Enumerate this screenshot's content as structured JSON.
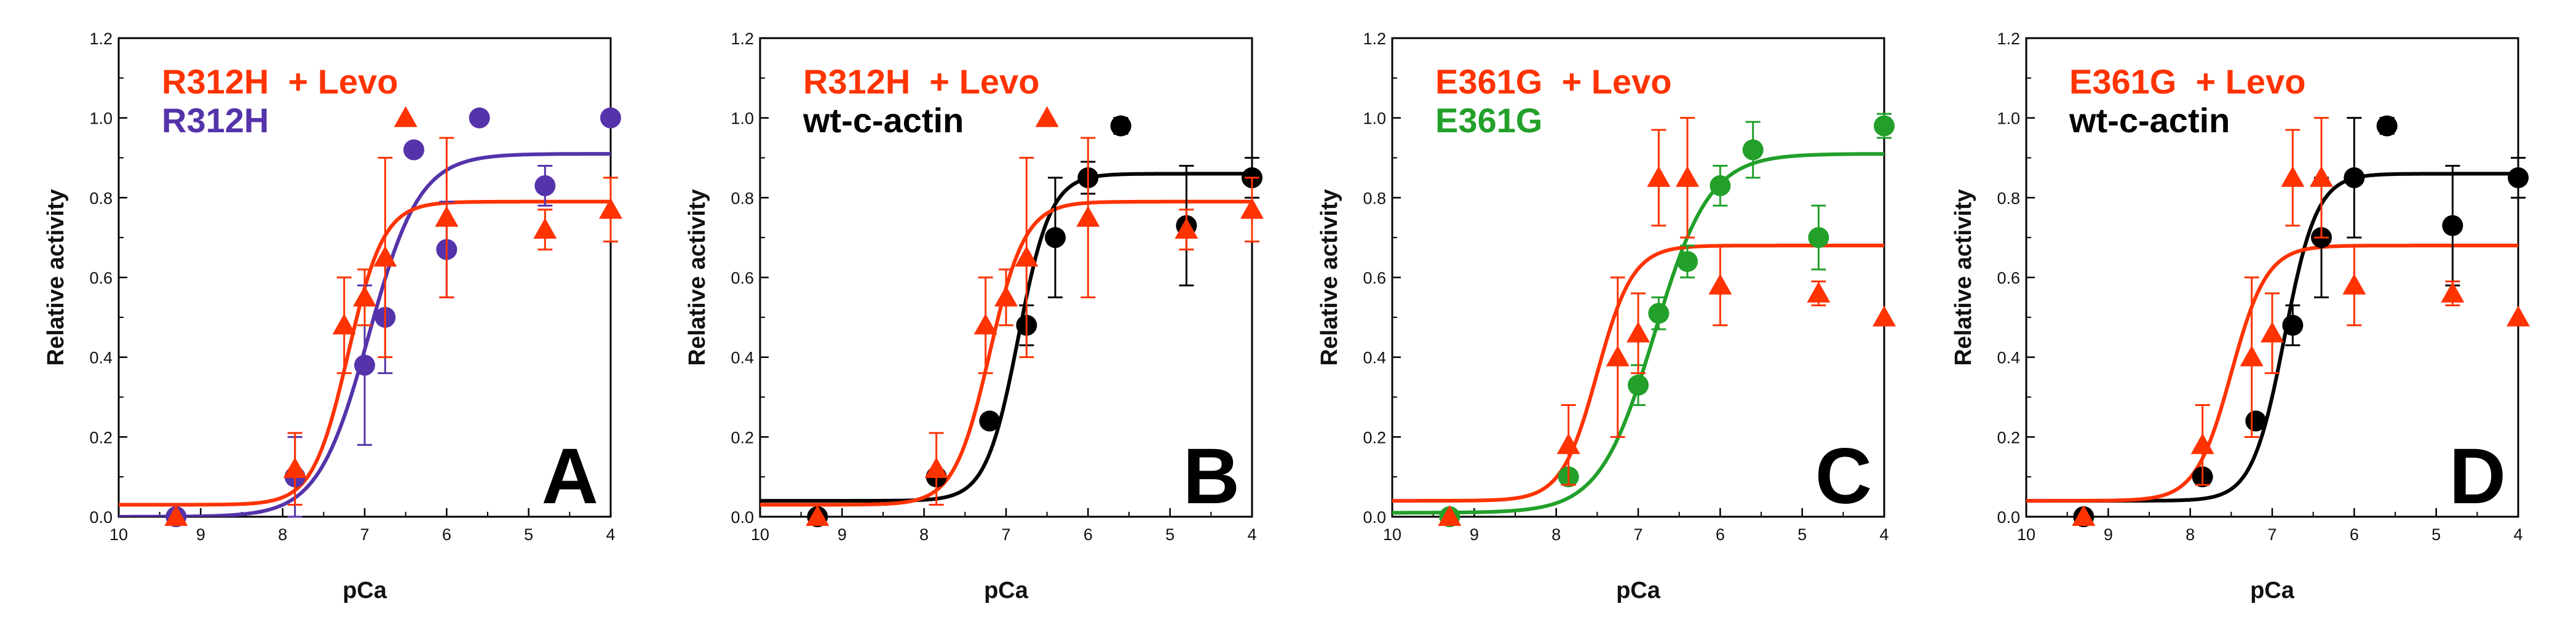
{
  "chart_data": [
    {
      "type": "scatter",
      "panel_label": "A",
      "xlabel": "pCa",
      "ylabel": "Relative activity",
      "xlim": [
        10,
        4
      ],
      "ylim": [
        0,
        1.2
      ],
      "xticks": [
        "10",
        "9",
        "8",
        "7",
        "6",
        "5",
        "4"
      ],
      "yticks": [
        "0.0",
        "0.2",
        "0.4",
        "0.6",
        "0.8",
        "1.0",
        "1.2"
      ],
      "legend": [
        {
          "label": "R312H  + Levo",
          "color": "#ff3300"
        },
        {
          "label": "R312H",
          "color": "#5533aa"
        }
      ],
      "series": [
        {
          "name": "R312H",
          "marker": "circle",
          "color": "#5533aa",
          "points": [
            {
              "x": 9.3,
              "y": 0.0
            },
            {
              "x": 7.85,
              "y": 0.1,
              "err": 0.1
            },
            {
              "x": 7.0,
              "y": 0.38,
              "err": 0.2
            },
            {
              "x": 6.75,
              "y": 0.5,
              "err": 0.14
            },
            {
              "x": 6.4,
              "y": 0.92
            },
            {
              "x": 6.0,
              "y": 0.67,
              "err": 0.12
            },
            {
              "x": 5.6,
              "y": 1.0
            },
            {
              "x": 4.8,
              "y": 0.83,
              "err": 0.05
            },
            {
              "x": 4.0,
              "y": 1.0
            }
          ],
          "fit": {
            "bottom": 0.0,
            "top": 0.91,
            "pca50": 6.95,
            "slope": 1.4
          }
        },
        {
          "name": "R312H + Levo",
          "marker": "triangle",
          "color": "#ff3300",
          "points": [
            {
              "x": 9.3,
              "y": 0.0
            },
            {
              "x": 7.85,
              "y": 0.12,
              "err": 0.09
            },
            {
              "x": 7.25,
              "y": 0.48,
              "err": 0.12
            },
            {
              "x": 7.0,
              "y": 0.55,
              "err": 0.07
            },
            {
              "x": 6.75,
              "y": 0.65,
              "err": 0.25
            },
            {
              "x": 6.5,
              "y": 1.0
            },
            {
              "x": 6.0,
              "y": 0.75,
              "err": 0.2
            },
            {
              "x": 4.8,
              "y": 0.72,
              "err": 0.05
            },
            {
              "x": 4.0,
              "y": 0.77,
              "err": 0.08
            }
          ],
          "fit": {
            "bottom": 0.03,
            "top": 0.79,
            "pca50": 7.2,
            "slope": 2.0
          }
        }
      ]
    },
    {
      "type": "scatter",
      "panel_label": "B",
      "xlabel": "pCa",
      "ylabel": "Relative activity",
      "xlim": [
        10,
        4
      ],
      "ylim": [
        0,
        1.2
      ],
      "xticks": [
        "10",
        "9",
        "8",
        "7",
        "6",
        "5",
        "4"
      ],
      "yticks": [
        "0.0",
        "0.2",
        "0.4",
        "0.6",
        "0.8",
        "1.0",
        "1.2"
      ],
      "legend": [
        {
          "label": "R312H  + Levo",
          "color": "#ff3300"
        },
        {
          "label": "wt-c-actin",
          "color": "#000000"
        }
      ],
      "series": [
        {
          "name": "wt-c-actin",
          "marker": "circle",
          "color": "#000000",
          "points": [
            {
              "x": 9.3,
              "y": 0.0
            },
            {
              "x": 7.85,
              "y": 0.1
            },
            {
              "x": 7.2,
              "y": 0.24
            },
            {
              "x": 6.75,
              "y": 0.48,
              "err": 0.05
            },
            {
              "x": 6.4,
              "y": 0.7,
              "err": 0.15
            },
            {
              "x": 6.0,
              "y": 0.85,
              "err": 0.04
            },
            {
              "x": 5.6,
              "y": 0.98,
              "err": 0.02
            },
            {
              "x": 4.8,
              "y": 0.73,
              "err": 0.15
            },
            {
              "x": 4.0,
              "y": 0.85,
              "err": 0.05
            }
          ],
          "fit": {
            "bottom": 0.04,
            "top": 0.86,
            "pca50": 6.85,
            "slope": 2.2
          }
        },
        {
          "name": "R312H + Levo",
          "marker": "triangle",
          "color": "#ff3300",
          "points": [
            {
              "x": 9.3,
              "y": 0.0
            },
            {
              "x": 7.85,
              "y": 0.12,
              "err": 0.09
            },
            {
              "x": 7.25,
              "y": 0.48,
              "err": 0.12
            },
            {
              "x": 7.0,
              "y": 0.55,
              "err": 0.07
            },
            {
              "x": 6.75,
              "y": 0.65,
              "err": 0.25
            },
            {
              "x": 6.5,
              "y": 1.0
            },
            {
              "x": 6.0,
              "y": 0.75,
              "err": 0.2
            },
            {
              "x": 4.8,
              "y": 0.72,
              "err": 0.05
            },
            {
              "x": 4.0,
              "y": 0.77,
              "err": 0.08
            }
          ],
          "fit": {
            "bottom": 0.03,
            "top": 0.79,
            "pca50": 7.2,
            "slope": 2.0
          }
        }
      ]
    },
    {
      "type": "scatter",
      "panel_label": "C",
      "xlabel": "pCa",
      "ylabel": "Relative activity",
      "xlim": [
        10,
        4
      ],
      "ylim": [
        0,
        1.2
      ],
      "xticks": [
        "10",
        "9",
        "8",
        "7",
        "6",
        "5",
        "4"
      ],
      "yticks": [
        "0.0",
        "0.2",
        "0.4",
        "0.6",
        "0.8",
        "1.0",
        "1.2"
      ],
      "legend": [
        {
          "label": "E361G  + Levo",
          "color": "#ff3300"
        },
        {
          "label": "E361G",
          "color": "#22a02a"
        }
      ],
      "series": [
        {
          "name": "E361G",
          "marker": "circle",
          "color": "#22a02a",
          "points": [
            {
              "x": 9.3,
              "y": 0.0
            },
            {
              "x": 7.85,
              "y": 0.1
            },
            {
              "x": 7.0,
              "y": 0.33,
              "err": 0.05
            },
            {
              "x": 6.75,
              "y": 0.51,
              "err": 0.04
            },
            {
              "x": 6.4,
              "y": 0.64,
              "err": 0.04
            },
            {
              "x": 6.0,
              "y": 0.83,
              "err": 0.05
            },
            {
              "x": 5.6,
              "y": 0.92,
              "err": 0.07
            },
            {
              "x": 4.8,
              "y": 0.7,
              "err": 0.08
            },
            {
              "x": 4.0,
              "y": 0.98,
              "err": 0.03
            }
          ],
          "fit": {
            "bottom": 0.01,
            "top": 0.91,
            "pca50": 6.8,
            "slope": 1.3
          }
        },
        {
          "name": "E361G + Levo",
          "marker": "triangle",
          "color": "#ff3300",
          "points": [
            {
              "x": 9.3,
              "y": 0.0
            },
            {
              "x": 7.85,
              "y": 0.18,
              "err": 0.1
            },
            {
              "x": 7.25,
              "y": 0.4,
              "err": 0.2
            },
            {
              "x": 7.0,
              "y": 0.46,
              "err": 0.1
            },
            {
              "x": 6.75,
              "y": 0.85,
              "err": 0.12
            },
            {
              "x": 6.4,
              "y": 0.85,
              "err": 0.15
            },
            {
              "x": 6.0,
              "y": 0.58,
              "err": 0.1
            },
            {
              "x": 4.8,
              "y": 0.56,
              "err": 0.03
            },
            {
              "x": 4.0,
              "y": 0.5
            }
          ],
          "fit": {
            "bottom": 0.04,
            "top": 0.68,
            "pca50": 7.5,
            "slope": 2.0
          }
        }
      ]
    },
    {
      "type": "scatter",
      "panel_label": "D",
      "xlabel": "pCa",
      "ylabel": "Relative activity",
      "xlim": [
        10,
        4
      ],
      "ylim": [
        0,
        1.2
      ],
      "xticks": [
        "10",
        "9",
        "8",
        "7",
        "6",
        "5",
        "4"
      ],
      "yticks": [
        "0.0",
        "0.2",
        "0.4",
        "0.6",
        "0.8",
        "1.0",
        "1.2"
      ],
      "legend": [
        {
          "label": "E361G  + Levo",
          "color": "#ff3300"
        },
        {
          "label": "wt-c-actin",
          "color": "#000000"
        }
      ],
      "series": [
        {
          "name": "wt-c-actin",
          "marker": "circle",
          "color": "#000000",
          "points": [
            {
              "x": 9.3,
              "y": 0.0
            },
            {
              "x": 7.85,
              "y": 0.1
            },
            {
              "x": 7.2,
              "y": 0.24
            },
            {
              "x": 6.75,
              "y": 0.48,
              "err": 0.05
            },
            {
              "x": 6.4,
              "y": 0.7,
              "err": 0.15
            },
            {
              "x": 6.0,
              "y": 0.85,
              "err": 0.15
            },
            {
              "x": 5.6,
              "y": 0.98,
              "err": 0.02
            },
            {
              "x": 4.8,
              "y": 0.73,
              "err": 0.15
            },
            {
              "x": 4.0,
              "y": 0.85,
              "err": 0.05
            }
          ],
          "fit": {
            "bottom": 0.04,
            "top": 0.86,
            "pca50": 6.85,
            "slope": 2.2
          }
        },
        {
          "name": "E361G + Levo",
          "marker": "triangle",
          "color": "#ff3300",
          "points": [
            {
              "x": 9.3,
              "y": 0.0
            },
            {
              "x": 7.85,
              "y": 0.18,
              "err": 0.1
            },
            {
              "x": 7.25,
              "y": 0.4,
              "err": 0.2
            },
            {
              "x": 7.0,
              "y": 0.46,
              "err": 0.1
            },
            {
              "x": 6.75,
              "y": 0.85,
              "err": 0.12
            },
            {
              "x": 6.4,
              "y": 0.85,
              "err": 0.15
            },
            {
              "x": 6.0,
              "y": 0.58,
              "err": 0.1
            },
            {
              "x": 4.8,
              "y": 0.56,
              "err": 0.03
            },
            {
              "x": 4.0,
              "y": 0.5
            }
          ],
          "fit": {
            "bottom": 0.04,
            "top": 0.68,
            "pca50": 7.5,
            "slope": 2.0
          }
        }
      ]
    }
  ]
}
